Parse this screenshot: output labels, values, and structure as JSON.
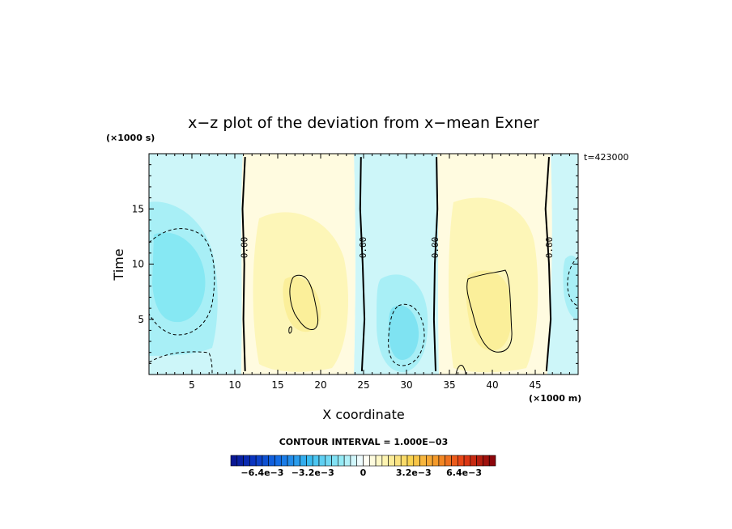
{
  "chart_data": {
    "type": "contour",
    "title": "x−z plot of the deviation from x−mean Exner",
    "xlabel": "X coordinate",
    "ylabel": "Time",
    "x_unit": "(×1000 m)",
    "y_unit": "(×1000 s)",
    "time_stamp": "t=423000",
    "xlim": [
      0,
      50
    ],
    "ylim": [
      0,
      20
    ],
    "x_ticks": [
      5,
      10,
      15,
      20,
      25,
      30,
      35,
      40,
      45
    ],
    "y_ticks": [
      5,
      10,
      15
    ],
    "contour_interval_text": "CONTOUR INTERVAL = 1.000E−03",
    "contour_interval": 0.001,
    "zero_contour_label": "0.00",
    "zero_contours_x": [
      [
        [
          11.2,
          0.3
        ],
        [
          11.0,
          5
        ],
        [
          11.1,
          10
        ],
        [
          10.9,
          15
        ],
        [
          11.2,
          19.7
        ]
      ],
      [
        [
          24.8,
          0.3
        ],
        [
          25.1,
          5
        ],
        [
          24.9,
          10
        ],
        [
          24.6,
          15
        ],
        [
          24.7,
          19.7
        ]
      ],
      [
        [
          33.4,
          0.3
        ],
        [
          33.2,
          5
        ],
        [
          33.3,
          10
        ],
        [
          33.6,
          15
        ],
        [
          33.5,
          19.7
        ]
      ],
      [
        [
          46.3,
          0.3
        ],
        [
          46.8,
          5
        ],
        [
          46.6,
          10
        ],
        [
          46.2,
          15
        ],
        [
          46.6,
          19.7
        ]
      ]
    ],
    "colorbar": {
      "vmin": -0.0084,
      "vmax": 0.0084,
      "tick_labels": [
        "−6.4e−3",
        "−3.2e−3",
        "0",
        "3.2e−3",
        "6.4e−3"
      ],
      "tick_values": [
        -0.0064,
        -0.0032,
        0,
        0.0032,
        0.0064
      ],
      "levels": 42
    },
    "colors": {
      "neg_strong": "#0a2f9c",
      "neg_mid": "#39c9f0",
      "neg_light": "#b8f2f7",
      "neutral": "#ffffff",
      "pos_light": "#fdf9c8",
      "pos_mid": "#f7c04a",
      "pos_strong": "#8a0a0a"
    }
  }
}
